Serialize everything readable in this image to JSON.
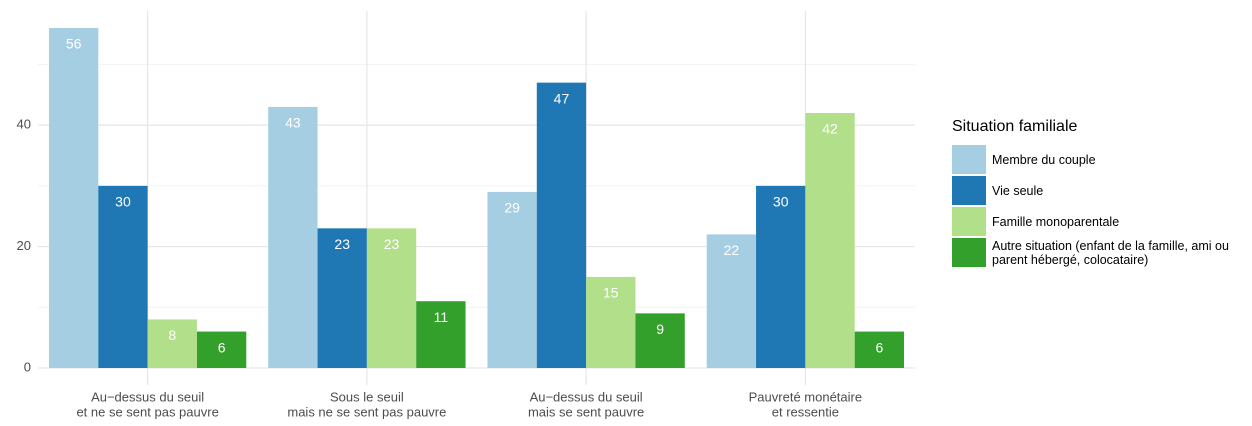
{
  "chart_data": {
    "type": "bar",
    "categories": [
      [
        "Au−dessus du seuil",
        "et ne se sent pas pauvre"
      ],
      [
        "Sous le seuil",
        "mais ne se sent pas pauvre"
      ],
      [
        "Au−dessus du seuil",
        "mais se sent pauvre"
      ],
      [
        "Pauvreté monétaire",
        "et ressentie"
      ]
    ],
    "series": [
      {
        "name": "Membre du couple",
        "color": "#a6cee3",
        "values": [
          56,
          43,
          29,
          22
        ]
      },
      {
        "name": "Vie seule",
        "color": "#1f78b4",
        "values": [
          30,
          23,
          47,
          30
        ]
      },
      {
        "name": "Famille monoparentale",
        "color": "#b2df8a",
        "values": [
          8,
          23,
          15,
          42
        ]
      },
      {
        "name": "Autre situation (enfant de la famille, ami ou parent hébergé, colocataire)",
        "color": "#33a02c",
        "values": [
          6,
          11,
          9,
          6
        ]
      }
    ],
    "legend_title": "Situation familiale",
    "ylim": [
      -2.8,
      58.8
    ],
    "yticks": [
      0,
      20,
      40
    ],
    "minor_yticks": [
      10,
      30,
      50
    ],
    "grid": true,
    "legend": "right"
  }
}
